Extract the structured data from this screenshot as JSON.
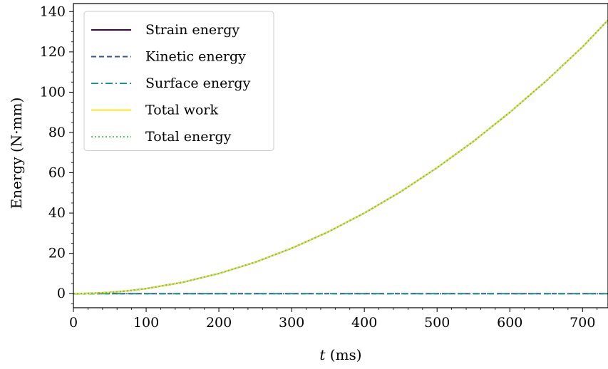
{
  "chart_data": {
    "type": "line",
    "xlabel_italic": "t",
    "xlabel_unit": " (ms)",
    "ylabel": "Energy (N·mm)",
    "xlim": [
      0,
      735
    ],
    "ylim": [
      -7,
      144
    ],
    "xticks": [
      0,
      100,
      200,
      300,
      400,
      500,
      600,
      700
    ],
    "yticks": [
      0,
      20,
      40,
      60,
      80,
      100,
      120,
      140
    ],
    "grid": false,
    "legend_position": "upper-left",
    "x": [
      0,
      25,
      50,
      75,
      100,
      150,
      200,
      250,
      300,
      350,
      400,
      450,
      500,
      550,
      600,
      650,
      700,
      735
    ],
    "series": [
      {
        "name": "Strain energy",
        "color": "#440154",
        "dash": "",
        "width": 2,
        "values": [
          0,
          0.16,
          0.63,
          1.4,
          2.5,
          5.6,
          10,
          15.6,
          22.5,
          30.6,
          40,
          50.6,
          62.5,
          75.6,
          90,
          105.6,
          122.5,
          135.8
        ]
      },
      {
        "name": "Kinetic energy",
        "color": "#3b528b",
        "dash": "7,4",
        "width": 2,
        "values": [
          0,
          0,
          0,
          0,
          0,
          0,
          0,
          0,
          0,
          0,
          0,
          0,
          0,
          0,
          0,
          0,
          0,
          0
        ]
      },
      {
        "name": "Surface energy",
        "color": "#21918c",
        "dash": "10,4,2,4",
        "width": 2,
        "values": [
          0,
          0,
          0,
          0,
          0,
          0,
          0,
          0,
          0,
          0,
          0,
          0,
          0,
          0,
          0,
          0,
          0,
          0
        ]
      },
      {
        "name": "Total work",
        "color": "#fde725",
        "dash": "",
        "width": 2,
        "values": [
          0,
          0.16,
          0.63,
          1.4,
          2.5,
          5.6,
          10,
          15.6,
          22.5,
          30.6,
          40,
          50.6,
          62.5,
          75.6,
          90,
          105.6,
          122.5,
          135.8
        ]
      },
      {
        "name": "Total energy",
        "color": "#5ec962",
        "dash": "2,3",
        "width": 2,
        "values": [
          0,
          0.16,
          0.63,
          1.4,
          2.5,
          5.6,
          10,
          15.6,
          22.5,
          30.6,
          40,
          50.6,
          62.5,
          75.6,
          90,
          105.6,
          122.5,
          135.8
        ]
      }
    ]
  }
}
